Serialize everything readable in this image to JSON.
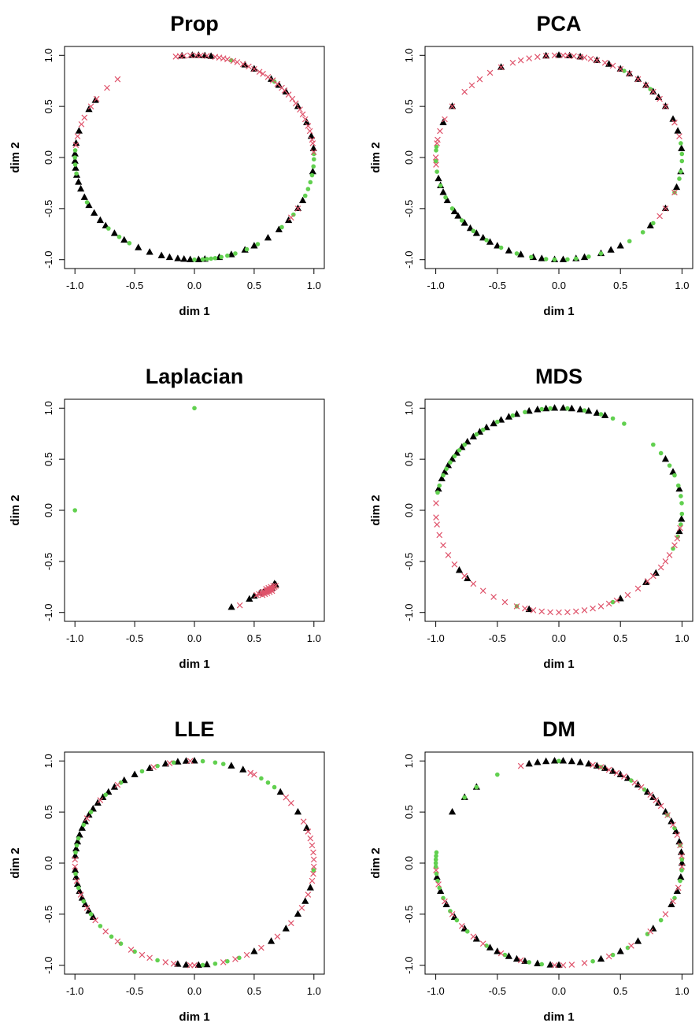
{
  "colors": {
    "triangle": "#000000",
    "circle": "#61D04F",
    "cross": "#DF536B"
  },
  "chart_data": [
    {
      "type": "scatter",
      "title": "Prop",
      "xlabel": "dim 1",
      "ylabel": "dim 2",
      "xlim": [
        -1.0,
        1.0
      ],
      "ylim": [
        -1.0,
        1.0
      ],
      "xticks": [
        "-1.0",
        "-0.5",
        "0.0",
        "0.5",
        "1.0"
      ],
      "yticks": [
        "-1.0",
        "-0.5",
        "0.0",
        "0.5",
        "1.0"
      ],
      "grid": false,
      "legend": "none",
      "series": [
        {
          "marker": "triangle",
          "theta_deg": [
            96,
            91,
            88,
            85,
            82,
            146,
            152,
            165,
            172,
            178,
            182,
            186,
            190,
            194,
            198,
            203,
            208,
            213,
            218,
            222,
            228,
            234,
            242,
            248,
            254,
            258,
            262,
            265,
            268,
            272,
            275,
            282,
            288,
            295,
            300,
            308,
            315,
            322,
            330,
            335,
            352,
            5,
            12,
            20,
            30,
            40,
            45,
            50,
            60,
            65
          ]
        },
        {
          "marker": "circle",
          "theta_deg": [
            176,
            180,
            184,
            189,
            206,
            224,
            231,
            237,
            270,
            274,
            276,
            278,
            280,
            283,
            286,
            290,
            296,
            302,
            317,
            326,
            338,
            342,
            346,
            350,
            355,
            359,
            2,
            48,
            72
          ]
        },
        {
          "marker": "cross",
          "theta_deg": [
            97,
            99,
            95,
            92,
            89,
            87,
            84,
            80,
            78,
            76,
            74,
            71,
            69,
            66,
            63,
            60,
            57,
            55,
            52,
            49,
            46,
            43,
            41,
            38,
            35,
            32,
            28,
            25,
            22,
            18,
            15,
            10,
            8,
            3,
            130,
            137,
            145,
            150,
            157,
            161,
            168,
            173,
            330,
            324
          ]
        }
      ]
    },
    {
      "type": "scatter",
      "title": "PCA",
      "xlabel": "dim 1",
      "ylabel": "dim 2",
      "xlim": [
        -1.0,
        1.0
      ],
      "ylim": [
        -1.0,
        1.0
      ],
      "xticks": [
        "-1.0",
        "-0.5",
        "0.0",
        "0.5",
        "1.0"
      ],
      "yticks": [
        "-1.0",
        "-0.5",
        "0.0",
        "0.5",
        "1.0"
      ],
      "grid": false,
      "legend": "none",
      "series": [
        {
          "marker": "triangle",
          "theta_deg": [
            118,
            96,
            90,
            85,
            80,
            72,
            66,
            60,
            55,
            50,
            45,
            40,
            36,
            30,
            22,
            15,
            5,
            352,
            343,
            330,
            318,
            300,
            295,
            290,
            282,
            278,
            272,
            268,
            262,
            258,
            252,
            246,
            240,
            236,
            232,
            228,
            224,
            220,
            215,
            212,
            205,
            200,
            196,
            192,
            160,
            150
          ]
        },
        {
          "marker": "circle",
          "theta_deg": [
            176,
            174,
            182,
            188,
            196,
            203,
            210,
            218,
            226,
            234,
            242,
            250,
            257,
            264,
            268,
            274,
            278,
            284,
            290,
            305,
            313,
            320,
            340,
            348,
            352,
            358,
            2,
            8,
            42,
            58
          ]
        },
        {
          "marker": "cross",
          "theta_deg": [
            180,
            184,
            172,
            170,
            165,
            158,
            150,
            140,
            135,
            130,
            124,
            118,
            112,
            108,
            104,
            100,
            96,
            92,
            88,
            86,
            83,
            80,
            78,
            75,
            72,
            68,
            64,
            60,
            55,
            50,
            45,
            40,
            35,
            30,
            20,
            12,
            340,
            330,
            325
          ]
        }
      ]
    },
    {
      "type": "scatter",
      "title": "Laplacian",
      "xlabel": "dim 1",
      "ylabel": "dim 2",
      "xlim": [
        -1.0,
        1.0
      ],
      "ylim": [
        -1.0,
        1.0
      ],
      "xticks": [
        "-1.0",
        "-0.5",
        "0.0",
        "0.5",
        "1.0"
      ],
      "yticks": [
        "-1.0",
        "-0.5",
        "0.0",
        "0.5",
        "1.0"
      ],
      "grid": false,
      "legend": "none",
      "series": [
        {
          "marker": "circle",
          "x": [
            0.0,
            -1.0,
            0.68,
            0.66,
            0.64
          ],
          "y": [
            1.0,
            0.0,
            -0.74,
            -0.75,
            -0.76
          ]
        },
        {
          "marker": "triangle",
          "x": [
            0.31,
            0.46,
            0.5,
            0.55,
            0.58,
            0.6,
            0.62,
            0.65,
            0.68,
            0.67
          ],
          "y": [
            -0.95,
            -0.87,
            -0.84,
            -0.81,
            -0.8,
            -0.79,
            -0.78,
            -0.76,
            -0.73,
            -0.72
          ]
        },
        {
          "marker": "cross",
          "x": [
            0.38,
            0.52,
            0.54,
            0.56,
            0.57,
            0.58,
            0.59,
            0.6,
            0.61,
            0.62,
            0.63,
            0.64,
            0.65,
            0.66,
            0.67,
            0.68,
            0.57,
            0.59,
            0.61,
            0.63,
            0.65,
            0.6,
            0.62,
            0.64,
            0.66
          ],
          "y": [
            -0.93,
            -0.83,
            -0.82,
            -0.81,
            -0.81,
            -0.8,
            -0.8,
            -0.79,
            -0.79,
            -0.78,
            -0.78,
            -0.77,
            -0.77,
            -0.76,
            -0.75,
            -0.74,
            -0.83,
            -0.82,
            -0.81,
            -0.8,
            -0.79,
            -0.77,
            -0.76,
            -0.75,
            -0.74
          ]
        }
      ]
    },
    {
      "type": "scatter",
      "title": "MDS",
      "xlabel": "dim 1",
      "ylabel": "dim 2",
      "xlim": [
        -1.0,
        1.0
      ],
      "ylim": [
        -1.0,
        1.0
      ],
      "xticks": [
        "-1.0",
        "-0.5",
        "0.0",
        "0.5",
        "1.0"
      ],
      "yticks": [
        "-1.0",
        "-0.5",
        "0.0",
        "0.5",
        "1.0"
      ],
      "grid": false,
      "legend": "none",
      "series": [
        {
          "marker": "triangle",
          "theta_deg": [
            168,
            162,
            158,
            154,
            150,
            146,
            142,
            138,
            134,
            130,
            126,
            122,
            118,
            114,
            110,
            104,
            100,
            96,
            92,
            88,
            84,
            80,
            76,
            72,
            68,
            30,
            22,
            12,
            355,
            348,
            222,
            216,
            256,
            300,
            315,
            322
          ]
        },
        {
          "marker": "circle",
          "theta_deg": [
            170,
            166,
            160,
            156,
            152,
            148,
            144,
            140,
            132,
            128,
            120,
            112,
            106,
            98,
            94,
            86,
            78,
            70,
            64,
            58,
            40,
            34,
            26,
            20,
            14,
            8,
            4,
            358,
            352,
            345,
            338,
            250,
            296
          ]
        },
        {
          "marker": "cross",
          "theta_deg": [
            176,
            184,
            188,
            194,
            200,
            206,
            212,
            220,
            226,
            232,
            238,
            244,
            250,
            254,
            258,
            262,
            266,
            270,
            274,
            278,
            282,
            286,
            290,
            294,
            298,
            304,
            310,
            316,
            320,
            326,
            330,
            334,
            340,
            344,
            350
          ]
        }
      ]
    },
    {
      "type": "scatter",
      "title": "LLE",
      "xlabel": "dim 1",
      "ylabel": "dim 2",
      "xlim": [
        -1.0,
        1.0
      ],
      "ylim": [
        -1.0,
        1.0
      ],
      "xticks": [
        "-1.0",
        "-0.5",
        "0.0",
        "0.5",
        "1.0"
      ],
      "yticks": [
        "-1.0",
        "-0.5",
        "0.0",
        "0.5",
        "1.0"
      ],
      "grid": false,
      "legend": "none",
      "series": [
        {
          "marker": "triangle",
          "theta_deg": [
            176,
            172,
            168,
            164,
            160,
            156,
            152,
            148,
            144,
            140,
            136,
            132,
            126,
            120,
            112,
            104,
            98,
            94,
            90,
            72,
            66,
            44,
            30,
            20,
            184,
            188,
            192,
            196,
            200,
            204,
            208,
            212,
            262,
            266,
            272,
            276,
            300,
            310,
            320,
            330,
            338,
            346
          ]
        },
        {
          "marker": "circle",
          "theta_deg": [
            174,
            170,
            166,
            158,
            150,
            138,
            128,
            116,
            108,
            100,
            86,
            80,
            76,
            56,
            52,
            48,
            186,
            194,
            202,
            210,
            218,
            226,
            232,
            240,
            252,
            274,
            280,
            286,
            292,
            356
          ]
        },
        {
          "marker": "cross",
          "theta_deg": [
            178,
            182,
            190,
            198,
            206,
            214,
            222,
            230,
            238,
            244,
            248,
            256,
            260,
            268,
            270,
            284,
            290,
            296,
            304,
            314,
            324,
            334,
            342,
            350,
            354,
            358,
            2,
            6,
            10,
            14,
            18,
            24,
            36,
            40,
            60,
            62,
            92,
            102,
            110,
            130,
            142,
            154
          ]
        }
      ]
    },
    {
      "type": "scatter",
      "title": "DM",
      "xlabel": "dim 1",
      "ylabel": "dim 2",
      "xlim": [
        -1.0,
        1.0
      ],
      "ylim": [
        -1.0,
        1.0
      ],
      "xticks": [
        "-1.0",
        "-0.5",
        "0.0",
        "0.5",
        "1.0"
      ],
      "yticks": [
        "-1.0",
        "-0.5",
        "0.0",
        "0.5",
        "1.0"
      ],
      "grid": false,
      "legend": "none",
      "series": [
        {
          "marker": "triangle",
          "theta_deg": [
            104,
            100,
            96,
            92,
            88,
            84,
            80,
            76,
            72,
            68,
            64,
            60,
            56,
            50,
            44,
            40,
            36,
            30,
            24,
            18,
            12,
            6,
            0,
            352,
            344,
            336,
            320,
            310,
            300,
            290,
            270,
            266,
            260,
            254,
            250,
            246,
            240,
            236,
            228,
            220,
            212,
            204,
            196,
            188,
            150,
            140,
            132
          ]
        },
        {
          "marker": "circle",
          "theta_deg": [
            174,
            176,
            178,
            180,
            182,
            186,
            190,
            194,
            200,
            208,
            214,
            222,
            234,
            244,
            256,
            262,
            286,
            296,
            304,
            316,
            326,
            340,
            350,
            356,
            2,
            10,
            20,
            28,
            46,
            54,
            70,
            90,
            120,
            132,
            140
          ]
        },
        {
          "marker": "cross",
          "theta_deg": [
            108,
            74,
            70,
            66,
            62,
            58,
            52,
            48,
            42,
            38,
            34,
            28,
            22,
            16,
            10,
            4,
            358,
            346,
            338,
            330,
            318,
            306,
            294,
            282,
            276,
            272,
            268,
            252,
            242,
            232,
            226,
            218,
            210,
            202,
            192,
            184
          ]
        }
      ]
    }
  ]
}
